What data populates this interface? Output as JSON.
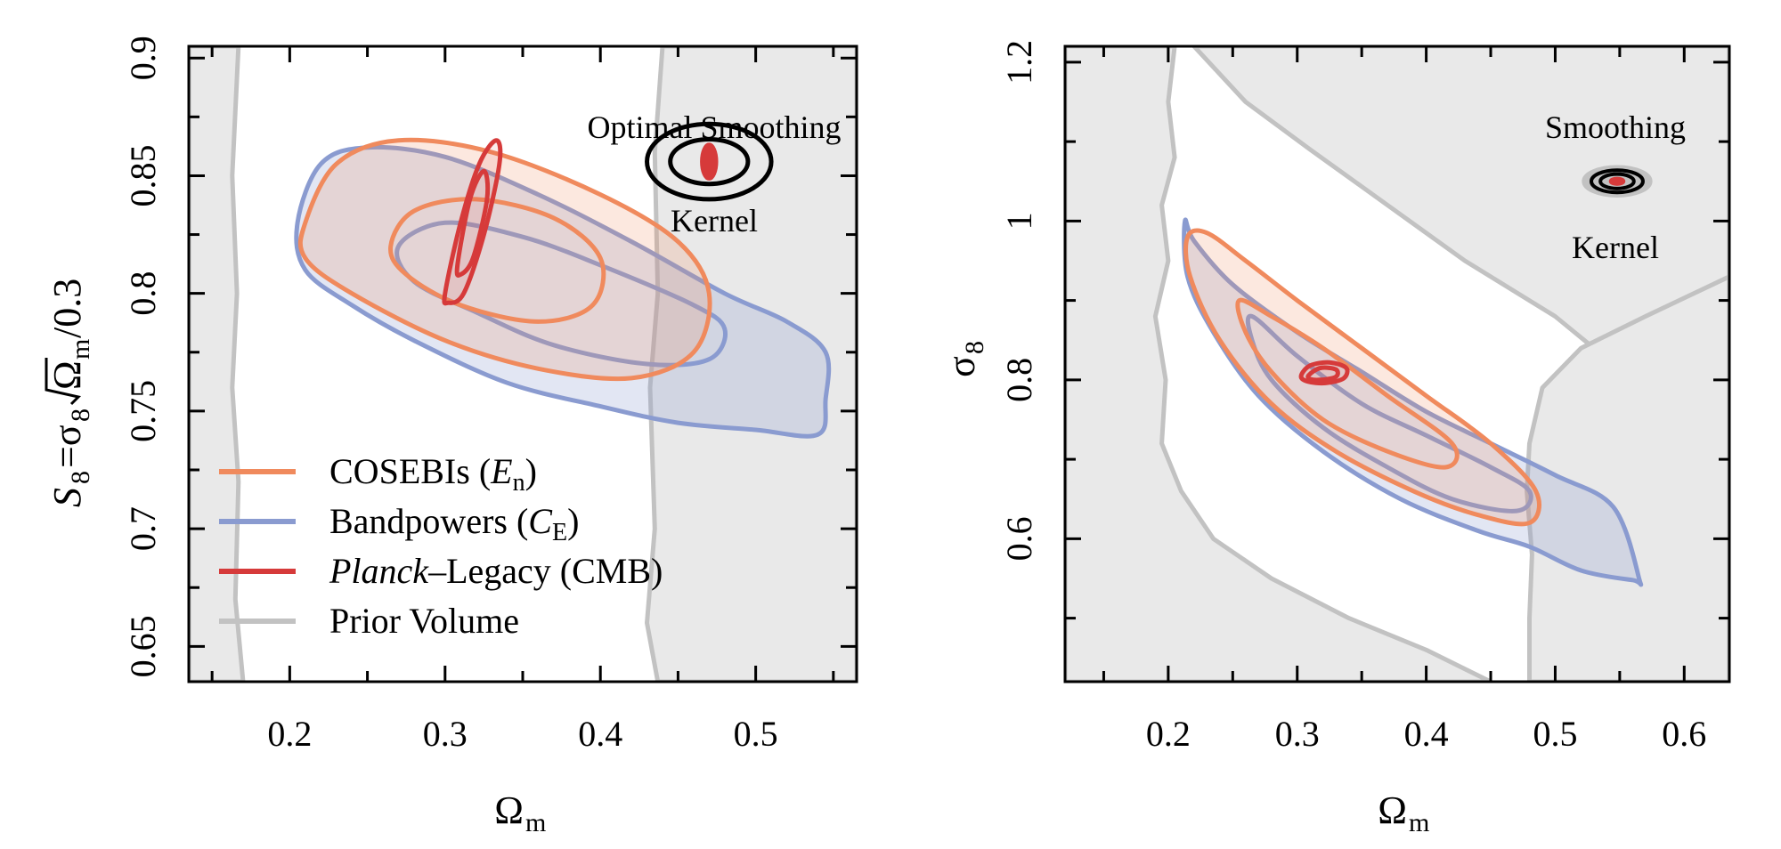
{
  "colors": {
    "cosebis": "#f08a5d",
    "bandpowers": "#8a9bd0",
    "planck": "#d63a3a",
    "prior": "#c2c2c2",
    "prior_fill": "#e9e9e9"
  },
  "chart_data": [
    {
      "type": "contour",
      "xlabel": "Ω",
      "xlabel_sub": "m",
      "ylabel": "S",
      "ylabel_sub": "8",
      "ylabel_rest": "=σ",
      "ylabel_rest_sub": "8",
      "ylabel_sqrt": "Ω",
      "ylabel_sqrt_sub": "m",
      "ylabel_tail": "/0.3",
      "xlim": [
        0.135,
        0.565
      ],
      "ylim": [
        0.635,
        0.905
      ],
      "xticks": [
        0.2,
        0.3,
        0.4,
        0.5
      ],
      "xtick_labels": [
        "0.2",
        "0.3",
        "0.4",
        "0.5"
      ],
      "yticks": [
        0.65,
        0.7,
        0.75,
        0.8,
        0.85,
        0.9
      ],
      "ytick_labels": [
        "0.65",
        "0.7",
        "0.75",
        "0.8",
        "0.85",
        "0.9"
      ],
      "annotation_top": "Optimal Smoothing",
      "annotation_bottom": "Kernel",
      "legend": [
        {
          "key": "cosebis",
          "label": "COSEBIs (",
          "italic": "E",
          "sub": "n",
          "tail": ")"
        },
        {
          "key": "bandpowers",
          "label": "Bandpowers (",
          "italic": "C",
          "sub": "E",
          "tail": ")"
        },
        {
          "key": "planck",
          "label": "",
          "italic": "Planck",
          "sub": "",
          "tail": "–Legacy (CMB)"
        },
        {
          "key": "prior",
          "label": "Prior Volume",
          "italic": "",
          "sub": "",
          "tail": ""
        }
      ],
      "series": [
        {
          "name": "Prior Volume",
          "key": "prior",
          "contours": [
            [
              [
                0.135,
                0.635
              ],
              [
                0.17,
                0.635
              ],
              [
                0.165,
                0.67
              ],
              [
                0.167,
                0.72
              ],
              [
                0.163,
                0.76
              ],
              [
                0.166,
                0.8
              ],
              [
                0.163,
                0.85
              ],
              [
                0.167,
                0.905
              ],
              [
                0.135,
                0.905
              ]
            ],
            [
              [
                0.565,
                0.905
              ],
              [
                0.44,
                0.905
              ],
              [
                0.435,
                0.86
              ],
              [
                0.437,
                0.8
              ],
              [
                0.432,
                0.76
              ],
              [
                0.435,
                0.7
              ],
              [
                0.43,
                0.66
              ],
              [
                0.437,
                0.635
              ],
              [
                0.565,
                0.635
              ]
            ]
          ]
        },
        {
          "name": "Bandpowers",
          "key": "bandpowers",
          "contours": [
            [
              [
                0.205,
                0.83
              ],
              [
                0.22,
                0.855
              ],
              [
                0.25,
                0.862
              ],
              [
                0.3,
                0.858
              ],
              [
                0.36,
                0.842
              ],
              [
                0.42,
                0.822
              ],
              [
                0.48,
                0.8
              ],
              [
                0.52,
                0.788
              ],
              [
                0.545,
                0.775
              ],
              [
                0.545,
                0.755
              ],
              [
                0.54,
                0.74
              ],
              [
                0.5,
                0.742
              ],
              [
                0.45,
                0.745
              ],
              [
                0.4,
                0.752
              ],
              [
                0.34,
                0.762
              ],
              [
                0.28,
                0.78
              ],
              [
                0.24,
                0.795
              ],
              [
                0.21,
                0.81
              ]
            ],
            [
              [
                0.27,
                0.82
              ],
              [
                0.3,
                0.83
              ],
              [
                0.35,
                0.824
              ],
              [
                0.4,
                0.812
              ],
              [
                0.46,
                0.795
              ],
              [
                0.48,
                0.785
              ],
              [
                0.47,
                0.772
              ],
              [
                0.43,
                0.77
              ],
              [
                0.37,
                0.778
              ],
              [
                0.32,
                0.792
              ],
              [
                0.28,
                0.805
              ]
            ]
          ]
        },
        {
          "name": "COSEBIs",
          "key": "cosebis",
          "contours": [
            [
              [
                0.21,
                0.83
              ],
              [
                0.23,
                0.855
              ],
              [
                0.27,
                0.865
              ],
              [
                0.33,
                0.86
              ],
              [
                0.4,
                0.842
              ],
              [
                0.45,
                0.822
              ],
              [
                0.47,
                0.8
              ],
              [
                0.46,
                0.775
              ],
              [
                0.42,
                0.764
              ],
              [
                0.36,
                0.768
              ],
              [
                0.3,
                0.78
              ],
              [
                0.24,
                0.8
              ],
              [
                0.21,
                0.815
              ]
            ],
            [
              [
                0.265,
                0.82
              ],
              [
                0.28,
                0.835
              ],
              [
                0.32,
                0.84
              ],
              [
                0.37,
                0.832
              ],
              [
                0.4,
                0.815
              ],
              [
                0.395,
                0.795
              ],
              [
                0.36,
                0.788
              ],
              [
                0.31,
                0.795
              ],
              [
                0.275,
                0.808
              ]
            ]
          ]
        },
        {
          "name": "Planck-Legacy (CMB)",
          "key": "planck",
          "contours": [
            [
              [
                0.3,
                0.8
              ],
              [
                0.31,
                0.83
              ],
              [
                0.322,
                0.855
              ],
              [
                0.333,
                0.865
              ],
              [
                0.335,
                0.855
              ],
              [
                0.325,
                0.825
              ],
              [
                0.312,
                0.8
              ],
              [
                0.302,
                0.796
              ]
            ],
            [
              [
                0.308,
                0.812
              ],
              [
                0.316,
                0.84
              ],
              [
                0.325,
                0.852
              ],
              [
                0.327,
                0.84
              ],
              [
                0.318,
                0.815
              ],
              [
                0.31,
                0.808
              ]
            ]
          ]
        }
      ],
      "kernel": {
        "x": 0.47,
        "y": 0.856,
        "rx": [
          0.04,
          0.025,
          0.005
        ],
        "ry": [
          0.016,
          0.0095,
          0.0075
        ]
      }
    },
    {
      "type": "contour",
      "xlabel": "Ω",
      "xlabel_sub": "m",
      "ylabel": "σ",
      "ylabel_sub": "8",
      "xlim": [
        0.12,
        0.635
      ],
      "ylim": [
        0.42,
        1.22
      ],
      "xticks": [
        0.2,
        0.3,
        0.4,
        0.5,
        0.6
      ],
      "xtick_labels": [
        "0.2",
        "0.3",
        "0.4",
        "0.5",
        "0.6"
      ],
      "yticks": [
        0.6,
        0.8,
        1.0,
        1.2
      ],
      "ytick_labels": [
        "0.6",
        "0.8",
        "1",
        "1.2"
      ],
      "annotation_top": "Smoothing",
      "annotation_bottom": "Kernel",
      "series": [
        {
          "name": "Prior Volume",
          "key": "prior",
          "contours": [
            [
              [
                0.12,
                1.22
              ],
              [
                0.205,
                1.22
              ],
              [
                0.2,
                1.15
              ],
              [
                0.205,
                1.08
              ],
              [
                0.195,
                1.02
              ],
              [
                0.2,
                0.95
              ],
              [
                0.19,
                0.88
              ],
              [
                0.198,
                0.8
              ],
              [
                0.195,
                0.72
              ],
              [
                0.21,
                0.66
              ],
              [
                0.235,
                0.6
              ],
              [
                0.28,
                0.55
              ],
              [
                0.34,
                0.5
              ],
              [
                0.4,
                0.46
              ],
              [
                0.45,
                0.42
              ],
              [
                0.12,
                0.42
              ]
            ],
            [
              [
                0.635,
                1.22
              ],
              [
                0.22,
                1.22
              ],
              [
                0.26,
                1.15
              ],
              [
                0.31,
                1.09
              ],
              [
                0.37,
                1.02
              ],
              [
                0.43,
                0.95
              ],
              [
                0.5,
                0.88
              ],
              [
                0.56,
                0.8
              ],
              [
                0.6,
                0.74
              ],
              [
                0.6,
                0.62
              ],
              [
                0.595,
                0.5
              ],
              [
                0.6,
                0.42
              ],
              [
                0.635,
                0.42
              ]
            ],
            [
              [
                0.48,
                0.42
              ],
              [
                0.48,
                0.5
              ],
              [
                0.482,
                0.58
              ],
              [
                0.478,
                0.66
              ],
              [
                0.48,
                0.72
              ],
              [
                0.49,
                0.79
              ],
              [
                0.52,
                0.84
              ],
              [
                0.57,
                0.88
              ],
              [
                0.635,
                0.93
              ],
              [
                0.635,
                0.42
              ]
            ]
          ]
        },
        {
          "name": "Bandpowers",
          "key": "bandpowers",
          "contours": [
            [
              [
                0.213,
                1.0
              ],
              [
                0.22,
                0.975
              ],
              [
                0.25,
                0.92
              ],
              [
                0.3,
                0.86
              ],
              [
                0.35,
                0.81
              ],
              [
                0.4,
                0.76
              ],
              [
                0.45,
                0.72
              ],
              [
                0.5,
                0.68
              ],
              [
                0.545,
                0.64
              ],
              [
                0.565,
                0.55
              ],
              [
                0.56,
                0.548
              ],
              [
                0.52,
                0.56
              ],
              [
                0.48,
                0.59
              ],
              [
                0.44,
                0.61
              ],
              [
                0.38,
                0.65
              ],
              [
                0.32,
                0.71
              ],
              [
                0.27,
                0.78
              ],
              [
                0.235,
                0.86
              ],
              [
                0.215,
                0.93
              ]
            ],
            [
              [
                0.265,
                0.88
              ],
              [
                0.3,
                0.83
              ],
              [
                0.35,
                0.77
              ],
              [
                0.4,
                0.73
              ],
              [
                0.45,
                0.69
              ],
              [
                0.48,
                0.66
              ],
              [
                0.47,
                0.635
              ],
              [
                0.42,
                0.65
              ],
              [
                0.37,
                0.69
              ],
              [
                0.32,
                0.74
              ],
              [
                0.28,
                0.8
              ],
              [
                0.265,
                0.85
              ]
            ]
          ]
        },
        {
          "name": "COSEBIs",
          "key": "cosebis",
          "contours": [
            [
              [
                0.215,
                0.98
              ],
              [
                0.23,
                0.985
              ],
              [
                0.26,
                0.95
              ],
              [
                0.3,
                0.9
              ],
              [
                0.35,
                0.84
              ],
              [
                0.4,
                0.78
              ],
              [
                0.45,
                0.72
              ],
              [
                0.485,
                0.66
              ],
              [
                0.48,
                0.62
              ],
              [
                0.44,
                0.63
              ],
              [
                0.39,
                0.66
              ],
              [
                0.33,
                0.71
              ],
              [
                0.28,
                0.77
              ],
              [
                0.24,
                0.85
              ],
              [
                0.217,
                0.93
              ]
            ],
            [
              [
                0.255,
                0.9
              ],
              [
                0.28,
                0.88
              ],
              [
                0.32,
                0.84
              ],
              [
                0.37,
                0.78
              ],
              [
                0.42,
                0.72
              ],
              [
                0.415,
                0.69
              ],
              [
                0.37,
                0.71
              ],
              [
                0.32,
                0.75
              ],
              [
                0.28,
                0.81
              ],
              [
                0.26,
                0.86
              ]
            ]
          ]
        },
        {
          "name": "Planck-Legacy (CMB)",
          "key": "planck",
          "contours": [
            [
              [
                0.303,
                0.805
              ],
              [
                0.31,
                0.818
              ],
              [
                0.325,
                0.822
              ],
              [
                0.338,
                0.815
              ],
              [
                0.336,
                0.802
              ],
              [
                0.322,
                0.796
              ],
              [
                0.308,
                0.798
              ]
            ],
            [
              [
                0.309,
                0.806
              ],
              [
                0.318,
                0.815
              ],
              [
                0.33,
                0.813
              ],
              [
                0.33,
                0.804
              ],
              [
                0.318,
                0.8
              ],
              [
                0.31,
                0.801
              ]
            ]
          ]
        }
      ],
      "kernel": {
        "x": 0.548,
        "y": 1.05,
        "rx": [
          0.026,
          0.02,
          0.013,
          0.005
        ],
        "ry": [
          0.026,
          0.02,
          0.013,
          0.005
        ]
      }
    }
  ]
}
